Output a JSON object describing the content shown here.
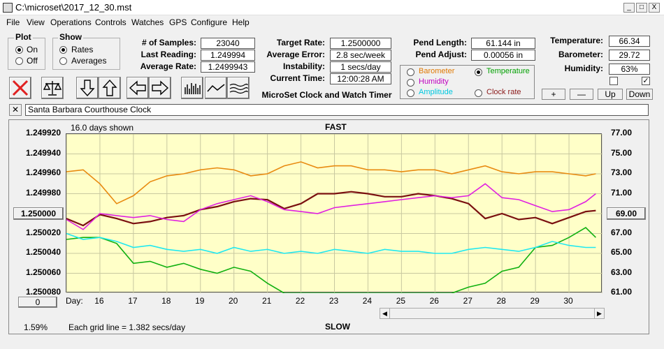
{
  "window": {
    "title": "C:\\microset\\2017_12_30.mst",
    "min": "_",
    "max": "□",
    "close": "X"
  },
  "menu": [
    "File",
    "View",
    "Operations",
    "Controls",
    "Watches",
    "GPS",
    "Configure",
    "Help"
  ],
  "plot_group": {
    "label": "Plot",
    "on": "On",
    "off": "Off",
    "selected": "On"
  },
  "show_group": {
    "label": "Show",
    "rates": "Rates",
    "averages": "Averages",
    "selected": "Rates"
  },
  "stats": {
    "samples_label": "# of Samples:",
    "samples": "23040",
    "last_label": "Last Reading:",
    "last": "1.249994",
    "avg_label": "Average Rate:",
    "avg": "1.2499943"
  },
  "target": {
    "rate_label": "Target Rate:",
    "rate": "1.2500000",
    "error_label": "Average Error:",
    "error": "2.8 sec/week",
    "instab_label": "Instability:",
    "instab": "1 secs/day",
    "time_label": "Current Time:",
    "time": "12:00:28 AM",
    "app_name": "MicroSet Clock and Watch Timer"
  },
  "pend": {
    "length_label": "Pend Length:",
    "length": "61.144 in",
    "adjust_label": "Pend Adjust:",
    "adjust": "0.00056 in"
  },
  "env": {
    "temp_label": "Temperature:",
    "temp": "66.34",
    "baro_label": "Barometer:",
    "baro": "29.72",
    "hum_label": "Humidity:",
    "hum": "63%",
    "check2": "✓"
  },
  "env_buttons": {
    "plus": "+",
    "minus": "—",
    "up": "Up",
    "down": "Down"
  },
  "series_options": [
    {
      "label": "Barometer",
      "color": "#e07800",
      "selected": false
    },
    {
      "label": "Temperature",
      "color": "#00a000",
      "selected": true
    },
    {
      "label": "Humidity",
      "color": "#c000c0",
      "selected": false
    },
    {
      "label": "Amplitude",
      "color": "#00c8e0",
      "selected": false
    },
    {
      "label": "Clock rate",
      "color": "#8b1a1a",
      "selected": false
    }
  ],
  "clock_name": "Santa Barbara Courthouse Clock",
  "clear_btn": "✕",
  "plot": {
    "days_shown": "16.0 days shown",
    "fast": "FAST",
    "slow": "SLOW",
    "center_value": "1.250000",
    "right_value": "69.00",
    "offset_btn": "0",
    "percent": "1.59%",
    "grid_note": "Each grid line = 1.382 secs/day",
    "day_label": "Day:"
  },
  "colors": {
    "plot_bg": "#ffffc8",
    "grid": "#c8c8a0",
    "rate": "#7a1010",
    "baro": "#e88a10",
    "temp": "#10b010",
    "hum": "#e020e0",
    "amp": "#20e8f0"
  },
  "chart_data": {
    "type": "line",
    "title": "",
    "xlabel": "Day:",
    "x_ticks": [
      "16",
      "17",
      "18",
      "19",
      "20",
      "21",
      "22",
      "23",
      "24",
      "25",
      "26",
      "27",
      "28",
      "29",
      "30"
    ],
    "xlim": [
      15.0,
      31.0
    ],
    "y_left_ticks": [
      "1.249920",
      "1.249940",
      "1.249960",
      "1.249980",
      "1.250000",
      "1.250020",
      "1.250040",
      "1.250060",
      "1.250080"
    ],
    "ylim_left": [
      1.24992,
      1.25008
    ],
    "y_right_ticks": [
      "77.00",
      "75.00",
      "73.00",
      "71.00",
      "69.00",
      "67.00",
      "65.00",
      "63.00",
      "61.00"
    ],
    "ylim_right": [
      61,
      77
    ],
    "grid": true,
    "series": [
      {
        "name": "Clock rate",
        "color": "#7a1010",
        "axis": "left",
        "x": [
          15,
          15.5,
          16,
          16.5,
          17,
          17.5,
          18,
          18.5,
          19,
          19.5,
          20,
          20.5,
          21,
          21.5,
          22,
          22.5,
          23,
          23.5,
          24,
          24.5,
          25,
          25.5,
          26,
          26.5,
          27,
          27.5,
          28,
          28.5,
          29,
          29.5,
          30,
          30.5,
          30.8
        ],
        "y": [
          1.250005,
          1.250012,
          1.250001,
          1.250005,
          1.25001,
          1.250008,
          1.250004,
          1.250002,
          1.249996,
          1.249993,
          1.249988,
          1.249985,
          1.249986,
          1.249995,
          1.24999,
          1.24998,
          1.24998,
          1.249978,
          1.24998,
          1.249983,
          1.249983,
          1.24998,
          1.249982,
          1.249985,
          1.24999,
          1.250005,
          1.25,
          1.250006,
          1.250004,
          1.25001,
          1.250004,
          1.249998,
          1.249997
        ]
      },
      {
        "name": "Barometer",
        "color": "#e88a10",
        "axis": "right",
        "x": [
          15,
          15.5,
          16,
          16.5,
          17,
          17.5,
          18,
          18.5,
          19,
          19.5,
          20,
          20.5,
          21,
          21.5,
          22,
          22.5,
          23,
          23.5,
          24,
          24.5,
          25,
          25.5,
          26,
          26.5,
          27,
          27.5,
          28,
          28.5,
          29,
          29.5,
          30,
          30.5,
          30.8
        ],
        "y": [
          73.2,
          73.4,
          72.0,
          70.0,
          70.8,
          72.2,
          72.8,
          73.0,
          73.4,
          73.6,
          73.4,
          72.8,
          73.0,
          73.8,
          74.2,
          73.6,
          73.8,
          73.8,
          73.4,
          73.4,
          73.2,
          73.4,
          73.4,
          73.0,
          73.4,
          73.8,
          73.2,
          73.0,
          73.2,
          73.2,
          73.0,
          72.8,
          73.0
        ]
      },
      {
        "name": "Temperature",
        "color": "#10b010",
        "axis": "right",
        "x": [
          15,
          15.5,
          16,
          16.5,
          17,
          17.5,
          18,
          18.5,
          19,
          19.5,
          20,
          20.5,
          21,
          21.5,
          22,
          22.5,
          23,
          23.5,
          24,
          24.5,
          25,
          25.5,
          26,
          26.5,
          27,
          27.5,
          28,
          28.5,
          29,
          29.5,
          30,
          30.5,
          30.8
        ],
        "y": [
          66.4,
          66.6,
          66.6,
          66.0,
          64.0,
          64.2,
          63.6,
          64.0,
          63.4,
          63.0,
          63.6,
          63.2,
          62.0,
          61.0,
          61.0,
          61.0,
          61.0,
          61.0,
          61.0,
          61.0,
          61.0,
          61.0,
          61.0,
          61.0,
          61.6,
          62.0,
          63.2,
          63.6,
          65.6,
          65.8,
          66.6,
          67.6,
          66.6
        ]
      },
      {
        "name": "Humidity",
        "color": "#e020e0",
        "axis": "right",
        "x": [
          15,
          15.5,
          16,
          16.5,
          17,
          17.5,
          18,
          18.5,
          19,
          19.5,
          20,
          20.5,
          21,
          21.5,
          22,
          22.5,
          23,
          23.5,
          24,
          24.5,
          25,
          25.5,
          26,
          26.5,
          27,
          27.5,
          28,
          28.5,
          29,
          29.5,
          30,
          30.5,
          30.8
        ],
        "y": [
          68.4,
          67.4,
          69.0,
          68.8,
          68.6,
          68.8,
          68.4,
          68.2,
          69.4,
          70.0,
          70.4,
          70.8,
          70.2,
          69.4,
          69.2,
          69.0,
          69.6,
          69.8,
          70.0,
          70.2,
          70.4,
          70.6,
          70.8,
          70.6,
          70.8,
          72.0,
          70.6,
          70.4,
          69.8,
          69.2,
          69.4,
          70.2,
          71.0
        ]
      },
      {
        "name": "Amplitude",
        "color": "#20e8f0",
        "axis": "right",
        "x": [
          15,
          15.5,
          16,
          16.5,
          17,
          17.5,
          18,
          18.5,
          19,
          19.5,
          20,
          20.5,
          21,
          21.5,
          22,
          22.5,
          23,
          23.5,
          24,
          24.5,
          25,
          25.5,
          26,
          26.5,
          27,
          27.5,
          28,
          28.5,
          29,
          29.5,
          30,
          30.5,
          30.8
        ],
        "y": [
          67.0,
          66.4,
          66.6,
          66.2,
          65.6,
          65.8,
          65.4,
          65.2,
          65.4,
          65.0,
          65.6,
          65.2,
          65.4,
          65.0,
          65.2,
          65.0,
          65.4,
          65.2,
          65.0,
          65.4,
          65.2,
          65.2,
          65.0,
          65.0,
          65.4,
          65.6,
          65.4,
          65.2,
          65.6,
          66.2,
          65.8,
          65.6,
          65.6
        ]
      }
    ]
  }
}
